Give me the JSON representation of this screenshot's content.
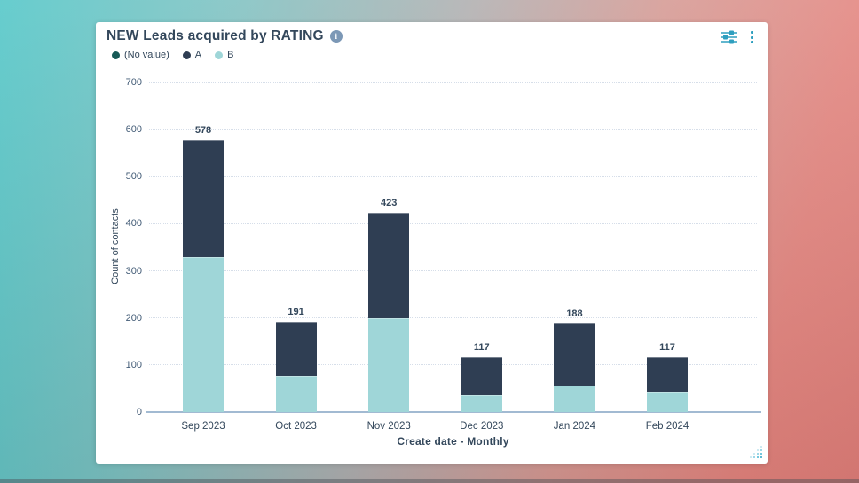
{
  "header": {
    "title": "NEW Leads acquired by RATING",
    "info_glyph": "i",
    "icons": {
      "filters": "sliders-icon",
      "menu": "kebab-menu-icon"
    }
  },
  "colors": {
    "accent_teal": "#2e9fbf",
    "text_navy": "#33475b",
    "axis_line": "#a2bad2",
    "gridline": "#d6dee9",
    "card_bg": "#ffffff",
    "bg_left": "#4ec5c6",
    "bg_right": "#df7d78"
  },
  "chart_data": {
    "type": "bar",
    "stacked": true,
    "title": "NEW Leads acquired by RATING",
    "categories": [
      "Sep 2023",
      "Oct 2023",
      "Nov 2023",
      "Dec 2023",
      "Jan 2024",
      "Feb 2024"
    ],
    "series": [
      {
        "name": "(No value)",
        "color": "#175a57",
        "values": [
          0,
          0,
          0,
          0,
          0,
          0
        ]
      },
      {
        "name": "A",
        "color": "#2f3e53",
        "values": [
          248,
          113,
          223,
          82,
          131,
          73
        ]
      },
      {
        "name": "B",
        "color": "#9fd6d8",
        "values": [
          330,
          78,
          200,
          35,
          57,
          44
        ]
      }
    ],
    "stack_bottom_to_top": [
      "B",
      "A",
      "(No value)"
    ],
    "totals": [
      578,
      191,
      423,
      117,
      188,
      117
    ],
    "xlabel": "Create date - Monthly",
    "ylabel": "Count of contacts",
    "ylim": [
      0,
      700
    ],
    "yticks": [
      0,
      100,
      200,
      300,
      400,
      500,
      600,
      700
    ],
    "grid": "horizontal dotted",
    "legend_position": "top-left"
  }
}
